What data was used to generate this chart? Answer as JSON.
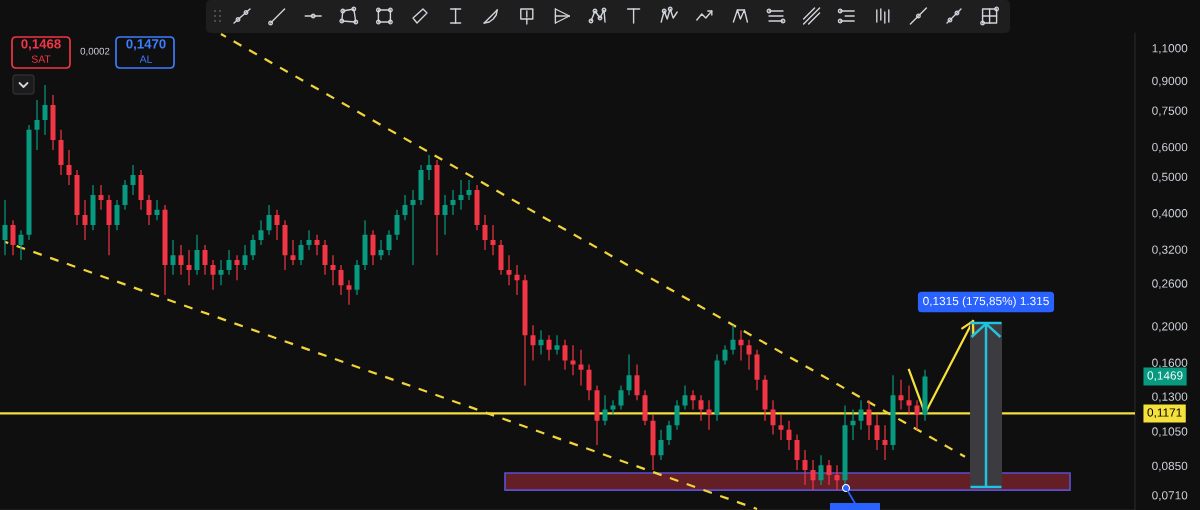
{
  "chart_data": {
    "type": "candlestick",
    "log": true,
    "categories": [
      null,
      null,
      null,
      null,
      null,
      null,
      null,
      null,
      null,
      null,
      null,
      null,
      null,
      null,
      null,
      null,
      null,
      null,
      null,
      null,
      null,
      null,
      null,
      null,
      null,
      null,
      null,
      null,
      null,
      null,
      null,
      null,
      null,
      null,
      null,
      null,
      null,
      null,
      null,
      null,
      null,
      null,
      null,
      null,
      null,
      null,
      null,
      null,
      null,
      null,
      null,
      null,
      null,
      null,
      null,
      null,
      null,
      null,
      null,
      null,
      null,
      null,
      null,
      null,
      null,
      null,
      null,
      null,
      null,
      null,
      null,
      null,
      null,
      null,
      null,
      null,
      null,
      null,
      null,
      null,
      null,
      null,
      null,
      null,
      null,
      null,
      null,
      null,
      null,
      null,
      null,
      null,
      null,
      null,
      null,
      null,
      null,
      null,
      null,
      null,
      null,
      null,
      null,
      null,
      null,
      null,
      null,
      null,
      null,
      null,
      null,
      null,
      null,
      null,
      null,
      null,
      null,
      null,
      null,
      null,
      null,
      null,
      null,
      null,
      null,
      null,
      null,
      null,
      null,
      null,
      null,
      null,
      null,
      null,
      null,
      null,
      null,
      null,
      null,
      null,
      null,
      null
    ],
    "ohlc": [
      [
        0.339,
        0.433,
        0.309,
        0.372
      ],
      [
        0.372,
        0.383,
        0.309,
        0.329
      ],
      [
        0.329,
        0.36,
        0.3,
        0.35
      ],
      [
        0.35,
        0.686,
        0.339,
        0.666
      ],
      [
        0.666,
        0.8,
        0.589,
        0.708
      ],
      [
        0.708,
        0.877,
        0.645,
        0.776
      ],
      [
        0.776,
        0.825,
        0.589,
        0.626
      ],
      [
        0.626,
        0.666,
        0.505,
        0.537
      ],
      [
        0.537,
        0.589,
        0.475,
        0.505
      ],
      [
        0.505,
        0.521,
        0.372,
        0.395
      ],
      [
        0.395,
        0.433,
        0.339,
        0.372
      ],
      [
        0.372,
        0.475,
        0.36,
        0.447
      ],
      [
        0.447,
        0.475,
        0.408,
        0.433
      ],
      [
        0.433,
        0.447,
        0.309,
        0.372
      ],
      [
        0.372,
        0.433,
        0.36,
        0.42
      ],
      [
        0.42,
        0.49,
        0.408,
        0.475
      ],
      [
        0.475,
        0.537,
        0.447,
        0.505
      ],
      [
        0.505,
        0.521,
        0.408,
        0.433
      ],
      [
        0.433,
        0.447,
        0.372,
        0.395
      ],
      [
        0.395,
        0.433,
        0.383,
        0.408
      ],
      [
        0.408,
        0.42,
        0.242,
        0.291
      ],
      [
        0.291,
        0.339,
        0.274,
        0.309
      ],
      [
        0.309,
        0.329,
        0.274,
        0.291
      ],
      [
        0.291,
        0.319,
        0.257,
        0.282
      ],
      [
        0.282,
        0.35,
        0.274,
        0.319
      ],
      [
        0.319,
        0.329,
        0.274,
        0.291
      ],
      [
        0.291,
        0.3,
        0.25,
        0.274
      ],
      [
        0.274,
        0.3,
        0.257,
        0.282
      ],
      [
        0.282,
        0.319,
        0.274,
        0.3
      ],
      [
        0.3,
        0.309,
        0.265,
        0.291
      ],
      [
        0.291,
        0.329,
        0.282,
        0.309
      ],
      [
        0.309,
        0.35,
        0.3,
        0.339
      ],
      [
        0.339,
        0.383,
        0.329,
        0.36
      ],
      [
        0.36,
        0.42,
        0.35,
        0.395
      ],
      [
        0.395,
        0.408,
        0.339,
        0.372
      ],
      [
        0.372,
        0.383,
        0.282,
        0.309
      ],
      [
        0.309,
        0.339,
        0.291,
        0.3
      ],
      [
        0.3,
        0.339,
        0.291,
        0.329
      ],
      [
        0.329,
        0.36,
        0.319,
        0.339
      ],
      [
        0.339,
        0.35,
        0.309,
        0.329
      ],
      [
        0.329,
        0.339,
        0.274,
        0.291
      ],
      [
        0.291,
        0.309,
        0.257,
        0.282
      ],
      [
        0.282,
        0.291,
        0.242,
        0.257
      ],
      [
        0.257,
        0.265,
        0.228,
        0.25
      ],
      [
        0.25,
        0.3,
        0.242,
        0.291
      ],
      [
        0.291,
        0.383,
        0.282,
        0.35
      ],
      [
        0.35,
        0.36,
        0.291,
        0.309
      ],
      [
        0.309,
        0.339,
        0.3,
        0.319
      ],
      [
        0.319,
        0.36,
        0.309,
        0.35
      ],
      [
        0.35,
        0.408,
        0.339,
        0.395
      ],
      [
        0.395,
        0.447,
        0.383,
        0.42
      ],
      [
        0.42,
        0.461,
        0.291,
        0.433
      ],
      [
        0.433,
        0.537,
        0.42,
        0.521
      ],
      [
        0.521,
        0.571,
        0.49,
        0.537
      ],
      [
        0.537,
        0.554,
        0.309,
        0.395
      ],
      [
        0.395,
        0.447,
        0.35,
        0.42
      ],
      [
        0.42,
        0.461,
        0.395,
        0.433
      ],
      [
        0.433,
        0.49,
        0.408,
        0.447
      ],
      [
        0.447,
        0.49,
        0.433,
        0.461
      ],
      [
        0.461,
        0.475,
        0.36,
        0.372
      ],
      [
        0.372,
        0.395,
        0.319,
        0.339
      ],
      [
        0.339,
        0.372,
        0.309,
        0.329
      ],
      [
        0.329,
        0.339,
        0.274,
        0.282
      ],
      [
        0.282,
        0.309,
        0.257,
        0.274
      ],
      [
        0.274,
        0.291,
        0.242,
        0.265
      ],
      [
        0.265,
        0.274,
        0.139,
        0.189
      ],
      [
        0.189,
        0.201,
        0.162,
        0.178
      ],
      [
        0.178,
        0.195,
        0.168,
        0.184
      ],
      [
        0.184,
        0.189,
        0.162,
        0.173
      ],
      [
        0.173,
        0.189,
        0.168,
        0.178
      ],
      [
        0.178,
        0.184,
        0.153,
        0.162
      ],
      [
        0.162,
        0.178,
        0.148,
        0.158
      ],
      [
        0.158,
        0.173,
        0.139,
        0.153
      ],
      [
        0.153,
        0.158,
        0.127,
        0.135
      ],
      [
        0.135,
        0.139,
        0.0965,
        0.112
      ],
      [
        0.112,
        0.131,
        0.109,
        0.12
      ],
      [
        0.12,
        0.127,
        0.116,
        0.123
      ],
      [
        0.123,
        0.139,
        0.12,
        0.135
      ],
      [
        0.135,
        0.168,
        0.131,
        0.148
      ],
      [
        0.148,
        0.158,
        0.127,
        0.131
      ],
      [
        0.131,
        0.135,
        0.109,
        0.112
      ],
      [
        0.112,
        0.116,
        0.0828,
        0.0907
      ],
      [
        0.0907,
        0.106,
        0.088,
        0.0995
      ],
      [
        0.0995,
        0.112,
        0.0965,
        0.109
      ],
      [
        0.109,
        0.127,
        0.106,
        0.123
      ],
      [
        0.123,
        0.139,
        0.12,
        0.131
      ],
      [
        0.131,
        0.135,
        0.12,
        0.127
      ],
      [
        0.127,
        0.131,
        0.112,
        0.12
      ],
      [
        0.12,
        0.127,
        0.106,
        0.116
      ],
      [
        0.116,
        0.168,
        0.112,
        0.162
      ],
      [
        0.162,
        0.178,
        0.158,
        0.173
      ],
      [
        0.173,
        0.201,
        0.168,
        0.184
      ],
      [
        0.184,
        0.195,
        0.162,
        0.178
      ],
      [
        0.178,
        0.184,
        0.153,
        0.168
      ],
      [
        0.168,
        0.173,
        0.135,
        0.144
      ],
      [
        0.144,
        0.148,
        0.112,
        0.12
      ],
      [
        0.12,
        0.127,
        0.103,
        0.109
      ],
      [
        0.109,
        0.116,
        0.0995,
        0.106
      ],
      [
        0.106,
        0.112,
        0.0936,
        0.0995
      ],
      [
        0.0995,
        0.103,
        0.0828,
        0.088
      ],
      [
        0.088,
        0.0936,
        0.0755,
        0.0828
      ],
      [
        0.0828,
        0.088,
        0.0732,
        0.0778
      ],
      [
        0.0778,
        0.0907,
        0.0755,
        0.0853
      ],
      [
        0.0853,
        0.088,
        0.0755,
        0.0803
      ],
      [
        0.0803,
        0.0853,
        0.0732,
        0.0778
      ],
      [
        0.0778,
        0.123,
        0.0755,
        0.109
      ],
      [
        0.109,
        0.12,
        0.0995,
        0.112
      ],
      [
        0.112,
        0.127,
        0.106,
        0.12
      ],
      [
        0.12,
        0.127,
        0.0995,
        0.109
      ],
      [
        0.109,
        0.116,
        0.0936,
        0.0995
      ],
      [
        0.0995,
        0.109,
        0.088,
        0.0965
      ],
      [
        0.0965,
        0.148,
        0.0936,
        0.131
      ],
      [
        0.131,
        0.144,
        0.12,
        0.127
      ],
      [
        0.127,
        0.139,
        0.116,
        0.123
      ],
      [
        0.123,
        0.127,
        0.106,
        0.116
      ],
      [
        0.116,
        0.153,
        0.112,
        0.1469
      ],
      null,
      null,
      null,
      null,
      null,
      null,
      null,
      null,
      null,
      null,
      null,
      null,
      null,
      null,
      null,
      null,
      null,
      null,
      null,
      null,
      null,
      null,
      null,
      null,
      null,
      null
    ],
    "colors": [
      "#089981",
      "#f23645",
      "#089981",
      "#089981",
      "#089981",
      "#089981",
      "#f23645",
      "#f23645",
      "#f23645",
      "#f23645",
      "#f23645",
      "#089981",
      "#f23645",
      "#f23645",
      "#089981",
      "#089981",
      "#089981",
      "#f23645",
      "#f23645",
      "#089981",
      "#f23645",
      "#089981",
      "#f23645",
      "#f23645",
      "#089981",
      "#f23645",
      "#f23645",
      "#089981",
      "#089981",
      "#f23645",
      "#089981",
      "#089981",
      "#089981",
      "#089981",
      "#f23645",
      "#f23645",
      "#f23645",
      "#089981",
      "#089981",
      "#f23645",
      "#f23645",
      "#f23645",
      "#f23645",
      "#f23645",
      "#089981",
      "#089981",
      "#f23645",
      "#089981",
      "#089981",
      "#089981",
      "#089981",
      "#089981",
      "#089981",
      "#089981",
      "#f23645",
      "#089981",
      "#089981",
      "#089981",
      "#089981",
      "#f23645",
      "#f23645",
      "#f23645",
      "#f23645",
      "#f23645",
      "#f23645",
      "#f23645",
      "#f23645",
      "#089981",
      "#f23645",
      "#089981",
      "#f23645",
      "#f23645",
      "#f23645",
      "#f23645",
      "#f23645",
      "#089981",
      "#089981",
      "#089981",
      "#089981",
      "#f23645",
      "#f23645",
      "#f23645",
      "#089981",
      "#089981",
      "#089981",
      "#089981",
      "#f23645",
      "#f23645",
      "#f23645",
      "#089981",
      "#089981",
      "#089981",
      "#f23645",
      "#f23645",
      "#f23645",
      "#f23645",
      "#f23645",
      "#f23645",
      "#f23645",
      "#f23645",
      "#f23645",
      "#f23645",
      "#089981",
      "#f23645",
      "#f23645",
      "#089981",
      "#089981",
      "#089981",
      "#f23645",
      "#f23645",
      "#f23645",
      "#089981",
      "#f23645",
      "#f23645",
      "#f23645",
      "#089981",
      null,
      null,
      null,
      null,
      null,
      null,
      null,
      null,
      null,
      null,
      null,
      null,
      null,
      null,
      null,
      null,
      null,
      null,
      null,
      null,
      null,
      null,
      null,
      null,
      null,
      null
    ],
    "series": [
      {
        "type": "line",
        "color": "#f0d43a",
        "line_style": "dashed",
        "values": [
          null,
          null,
          null,
          null,
          null,
          null,
          null,
          null,
          null,
          null,
          null,
          null,
          null,
          null,
          null,
          null,
          null,
          null,
          null,
          null,
          null,
          null,
          null,
          null,
          null,
          null,
          null,
          1.198,
          null,
          null,
          null,
          null,
          null,
          null,
          null,
          null,
          null,
          null,
          null,
          null,
          null,
          null,
          null,
          null,
          null,
          null,
          null,
          null,
          null,
          null,
          null,
          null,
          null,
          null,
          null,
          null,
          null,
          null,
          null,
          null,
          null,
          null,
          null,
          null,
          null,
          null,
          null,
          null,
          null,
          null,
          null,
          null,
          null,
          null,
          null,
          null,
          null,
          null,
          null,
          null,
          null,
          null,
          null,
          null,
          null,
          null,
          null,
          null,
          null,
          null,
          null,
          null,
          null,
          null,
          null,
          null,
          null,
          null,
          null,
          null,
          null,
          null,
          null,
          null,
          null,
          null,
          null,
          null,
          null,
          null,
          null,
          null,
          null,
          null,
          null,
          null,
          null,
          null,
          null,
          null,
          0.0898,
          null,
          null,
          null,
          null,
          null,
          null,
          null,
          null,
          null,
          null,
          null,
          null,
          null,
          null,
          null,
          null,
          null,
          null,
          null,
          null,
          null
        ]
      },
      {
        "type": "line",
        "color": "#f0d43a",
        "line_style": "dashed",
        "values": [
          0.3353,
          null,
          null,
          null,
          null,
          null,
          null,
          null,
          null,
          null,
          null,
          null,
          null,
          null,
          null,
          null,
          null,
          null,
          null,
          null,
          null,
          null,
          null,
          null,
          null,
          null,
          null,
          null,
          null,
          null,
          null,
          null,
          null,
          null,
          null,
          null,
          null,
          null,
          null,
          null,
          null,
          null,
          null,
          null,
          null,
          null,
          null,
          null,
          null,
          null,
          null,
          null,
          null,
          null,
          null,
          null,
          null,
          null,
          null,
          null,
          null,
          null,
          null,
          null,
          null,
          null,
          null,
          null,
          null,
          null,
          null,
          null,
          null,
          null,
          null,
          null,
          null,
          null,
          null,
          null,
          null,
          null,
          null,
          null,
          null,
          null,
          null,
          null,
          null,
          null,
          null,
          null,
          null,
          null,
          0.0652,
          null,
          null,
          null,
          null,
          null,
          null,
          null,
          null,
          null,
          null,
          null,
          null,
          null,
          null,
          null,
          null,
          null,
          null,
          null,
          null,
          null,
          null,
          null,
          null,
          null,
          null,
          null,
          null,
          null,
          null,
          null,
          null,
          null,
          null,
          null,
          null,
          null,
          null,
          null,
          null,
          null,
          null,
          null,
          null,
          null,
          null,
          null
        ]
      },
      {
        "type": "line",
        "color": "#f5e13b",
        "line_style": "solid",
        "values": [
          null,
          null,
          null,
          null,
          null,
          null,
          null,
          null,
          null,
          null,
          null,
          null,
          null,
          null,
          null,
          null,
          null,
          null,
          null,
          null,
          null,
          null,
          null,
          null,
          null,
          null,
          null,
          null,
          null,
          null,
          null,
          null,
          null,
          null,
          null,
          null,
          null,
          null,
          null,
          null,
          null,
          null,
          null,
          null,
          null,
          null,
          null,
          null,
          null,
          null,
          null,
          null,
          null,
          null,
          null,
          null,
          null,
          null,
          null,
          null,
          null,
          null,
          null,
          null,
          null,
          null,
          null,
          null,
          null,
          null,
          null,
          null,
          null,
          null,
          null,
          null,
          null,
          null,
          null,
          null,
          null,
          null,
          null,
          null,
          null,
          null,
          null,
          null,
          null,
          null,
          null,
          null,
          null,
          null,
          null,
          null,
          null,
          null,
          null,
          null,
          null,
          null,
          null,
          null,
          null,
          null,
          null,
          null,
          null,
          null,
          null,
          null,
          null,
          0.153,
          null,
          0.1171,
          null,
          null,
          null,
          null,
          null,
          0.2063,
          null,
          null,
          null,
          null,
          null,
          null,
          null,
          null,
          null,
          null,
          null,
          null,
          null,
          null,
          null,
          null,
          null,
          null,
          null,
          null
        ]
      }
    ],
    "ylim": [
      0.0648,
      1.206
    ],
    "yticks": [
      {
        "value": 0.071,
        "label": "0,0710"
      },
      {
        "value": 0.085,
        "label": "0,0850"
      },
      {
        "value": 0.105,
        "label": "0,1050"
      },
      {
        "value": 0.13,
        "label": "0,1300"
      },
      {
        "value": 0.16,
        "label": "0,1600"
      },
      {
        "value": 0.2,
        "label": "0,2000"
      },
      {
        "value": 0.26,
        "label": "0,2600"
      },
      {
        "value": 0.32,
        "label": "0,3200"
      },
      {
        "value": 0.4,
        "label": "0,4000"
      },
      {
        "value": 0.5,
        "label": "0,5000"
      },
      {
        "value": 0.6,
        "label": "0,6000"
      },
      {
        "value": 0.75,
        "label": "0,7500"
      },
      {
        "value": 0.9,
        "label": "0,9000"
      },
      {
        "value": 1.1,
        "label": "1,1000"
      }
    ],
    "tick_labels": "y",
    "ref_lines": [
      {
        "axis": "y",
        "value": 0.1171,
        "label": "0,1171",
        "color": "#f5e13b",
        "line_style": "solid"
      }
    ],
    "bands": [
      {
        "axis": "y",
        "from": 0.0732,
        "to": 0.0813,
        "color": "#641e26"
      }
    ],
    "annotations": [
      "0,1468",
      "SAT",
      "0,0002",
      "0,1470",
      "AL",
      "0,1469",
      "0,1315 (175,85%) 1.315"
    ]
  }
}
